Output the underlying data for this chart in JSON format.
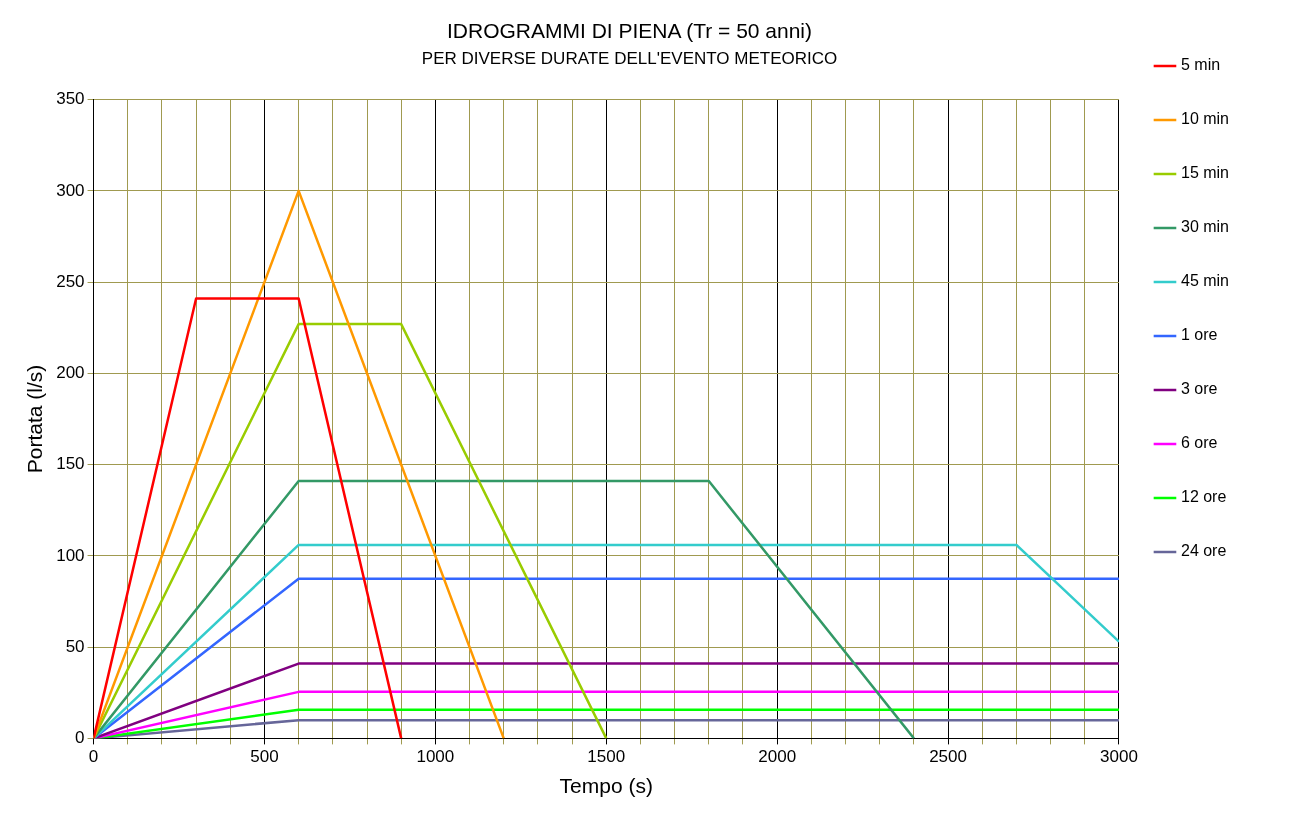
{
  "chart_data": {
    "type": "line",
    "title": "IDROGRAMMI DI PIENA (Tr = 50 anni)",
    "subtitle": "PER DIVERSE DURATE DELL'EVENTO METEORICO",
    "xlabel": "Tempo (s)",
    "ylabel": "Portata (l/s)",
    "xlim": [
      0,
      3000
    ],
    "ylim": [
      0,
      350
    ],
    "xticks": [
      0,
      {
        "value": 100,
        "label": null
      },
      {
        "value": 200,
        "label": null
      },
      {
        "value": 300,
        "label": null
      },
      {
        "value": 400,
        "label": null
      },
      500,
      {
        "value": 600,
        "label": null
      },
      {
        "value": 700,
        "label": null
      },
      {
        "value": 800,
        "label": null
      },
      {
        "value": 900,
        "label": null
      },
      1000,
      {
        "value": 1100,
        "label": null
      },
      {
        "value": 1200,
        "label": null
      },
      {
        "value": 1300,
        "label": null
      },
      {
        "value": 1400,
        "label": null
      },
      1500,
      {
        "value": 1600,
        "label": null
      },
      {
        "value": 1700,
        "label": null
      },
      {
        "value": 1800,
        "label": null
      },
      {
        "value": 1900,
        "label": null
      },
      2000,
      {
        "value": 2100,
        "label": null
      },
      {
        "value": 2200,
        "label": null
      },
      {
        "value": 2300,
        "label": null
      },
      {
        "value": 2400,
        "label": null
      },
      2500,
      {
        "value": 2600,
        "label": null
      },
      {
        "value": 2700,
        "label": null
      },
      {
        "value": 2800,
        "label": null
      },
      {
        "value": 2900,
        "label": null
      },
      3000
    ],
    "yticks": [
      0,
      50,
      100,
      150,
      200,
      250,
      300,
      350
    ],
    "grid": true,
    "legend": "right",
    "marker": "none",
    "line_style": "solid",
    "series": [
      {
        "name": "5 min",
        "color": "#ff0000",
        "x": [
          0,
          300,
          600,
          900
        ],
        "values": [
          0,
          241,
          241,
          0
        ]
      },
      {
        "name": "10 min",
        "color": "#ff9900",
        "x": [
          0,
          600,
          1200
        ],
        "values": [
          0,
          300,
          0
        ]
      },
      {
        "name": "15 min",
        "color": "#99cc00",
        "x": [
          0,
          600,
          900,
          1500
        ],
        "values": [
          0,
          227,
          227,
          0
        ]
      },
      {
        "name": "30 min",
        "color": "#339966",
        "x": [
          0,
          600,
          1800,
          2400
        ],
        "values": [
          0,
          141,
          141,
          0
        ]
      },
      {
        "name": "45 min",
        "color": "#33cccc",
        "x": [
          0,
          600,
          2700,
          3000
        ],
        "values": [
          0,
          106,
          106,
          53
        ]
      },
      {
        "name": "1 ore",
        "color": "#3366ff",
        "x": [
          0,
          600,
          3000
        ],
        "values": [
          0,
          87.5,
          87.5
        ]
      },
      {
        "name": "3 ore",
        "color": "#800080",
        "x": [
          0,
          600,
          3000
        ],
        "values": [
          0,
          41,
          41
        ]
      },
      {
        "name": "6 ore",
        "color": "#ff00ff",
        "x": [
          0,
          600,
          3000
        ],
        "values": [
          0,
          25.5,
          25.5
        ]
      },
      {
        "name": "12 ore",
        "color": "#00ff00",
        "x": [
          0,
          600,
          3000
        ],
        "values": [
          0,
          15.7,
          15.7
        ]
      },
      {
        "name": "24 ore",
        "color": "#666699",
        "x": [
          0,
          600,
          3000
        ],
        "values": [
          0,
          10,
          10
        ]
      }
    ]
  }
}
